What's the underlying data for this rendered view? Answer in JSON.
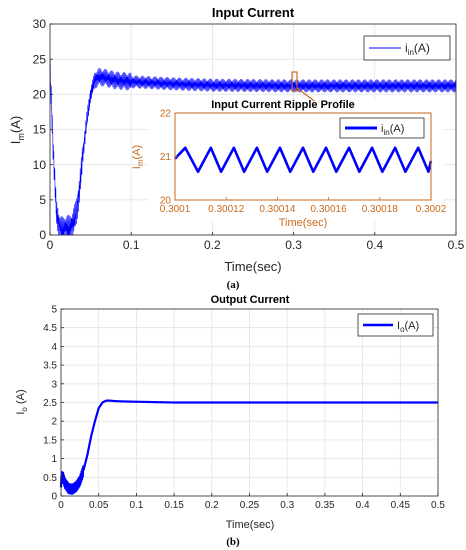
{
  "chart_data": [
    {
      "type": "line",
      "panel_label": "(a)",
      "title": "Input Current",
      "xlabel": "Time(sec)",
      "ylabel": "I_m(A)",
      "ylabel_main": "I",
      "ylabel_sub": "m",
      "ylabel_tail": "(A)",
      "xlim": [
        0,
        0.5
      ],
      "ylim": [
        0,
        30
      ],
      "x_ticks": [
        "0",
        "0.1",
        "0.2",
        "0.3",
        "0.4",
        "0.5"
      ],
      "y_ticks": [
        "0",
        "5",
        "10",
        "15",
        "20",
        "25",
        "30"
      ],
      "grid": true,
      "legend_position": "top-right",
      "series": [
        {
          "name": "i_in(A)",
          "legend_main": "i",
          "legend_sub": "in",
          "legend_tail": "(A)",
          "color": "#0000ff",
          "x": [
            0,
            0.004,
            0.008,
            0.012,
            0.016,
            0.02,
            0.024,
            0.028,
            0.032,
            0.036,
            0.04,
            0.045,
            0.05,
            0.055,
            0.06,
            0.07,
            0.08,
            0.1,
            0.15,
            0.2,
            0.3,
            0.4,
            0.5
          ],
          "y": [
            24,
            12,
            3,
            1,
            0.5,
            1,
            0.8,
            1.5,
            3,
            6,
            11,
            16,
            20,
            22,
            22.5,
            22.3,
            22,
            21.8,
            21.5,
            21.3,
            21.2,
            21.2,
            21.2
          ],
          "ripple_amplitude": 0.9
        }
      ],
      "inset": {
        "title": "Input Current Ripple Profile",
        "xlabel": "Time(sec)",
        "ylabel": "I_m(A)",
        "ylabel_main": "I",
        "ylabel_sub": "m",
        "ylabel_tail": "(A)",
        "xlim": [
          0.3001,
          0.3002
        ],
        "ylim": [
          20,
          22
        ],
        "x_ticks": [
          "0.3001",
          "0.30012",
          "0.30014",
          "0.30016",
          "0.30018",
          "0.3002"
        ],
        "y_ticks": [
          "20",
          "21",
          "22"
        ],
        "legend_position": "top-right",
        "frame_color": "#c96a1e",
        "series": [
          {
            "name": "i_in(A)",
            "legend_main": "i",
            "legend_sub": "in",
            "legend_tail": "(A)",
            "color": "#0000ff",
            "x": [
              0.3001,
              0.300104,
              0.300109,
              0.300114,
              0.300118,
              0.300123,
              0.300127,
              0.300132,
              0.300136,
              0.300141,
              0.300145,
              0.30015,
              0.300154,
              0.300159,
              0.300163,
              0.300168,
              0.300172,
              0.300177,
              0.300181,
              0.300186,
              0.30019,
              0.300195,
              0.300199,
              0.3002
            ],
            "y": [
              20.95,
              21.2,
              20.65,
              21.2,
              20.65,
              21.2,
              20.65,
              21.2,
              20.65,
              21.2,
              20.65,
              21.2,
              20.65,
              21.2,
              20.65,
              21.2,
              20.65,
              21.2,
              20.65,
              21.2,
              20.65,
              21.2,
              20.65,
              20.9
            ]
          }
        ]
      }
    },
    {
      "type": "line",
      "panel_label": "(b)",
      "title": "Output Current",
      "xlabel": "Time(sec)",
      "ylabel": "I_o (A)",
      "ylabel_main": "I",
      "ylabel_sub": "o",
      "ylabel_tail": " (A)",
      "xlim": [
        0,
        0.5
      ],
      "ylim": [
        0,
        5
      ],
      "x_ticks": [
        "0",
        "0.05",
        "0.1",
        "0.15",
        "0.2",
        "0.25",
        "0.3",
        "0.35",
        "0.4",
        "0.45",
        "0.5"
      ],
      "y_ticks": [
        "0",
        "0.5",
        "1",
        "1.5",
        "2",
        "2.5",
        "3",
        "3.5",
        "4",
        "4.5",
        "5"
      ],
      "grid": true,
      "legend_position": "top-right",
      "series": [
        {
          "name": "I_o(A)",
          "legend_main": "I",
          "legend_sub": "o",
          "legend_tail": "(A)",
          "color": "#0000ff",
          "x": [
            0,
            0.002,
            0.005,
            0.01,
            0.015,
            0.02,
            0.025,
            0.03,
            0.035,
            0.04,
            0.045,
            0.05,
            0.055,
            0.06,
            0.065,
            0.07,
            0.08,
            0.1,
            0.15,
            0.2,
            0.3,
            0.4,
            0.5
          ],
          "y": [
            0.35,
            0.55,
            0.35,
            0.2,
            0.18,
            0.25,
            0.4,
            0.7,
            1.1,
            1.6,
            2.0,
            2.35,
            2.5,
            2.55,
            2.55,
            2.54,
            2.53,
            2.52,
            2.5,
            2.5,
            2.5,
            2.5,
            2.5
          ]
        }
      ]
    }
  ]
}
